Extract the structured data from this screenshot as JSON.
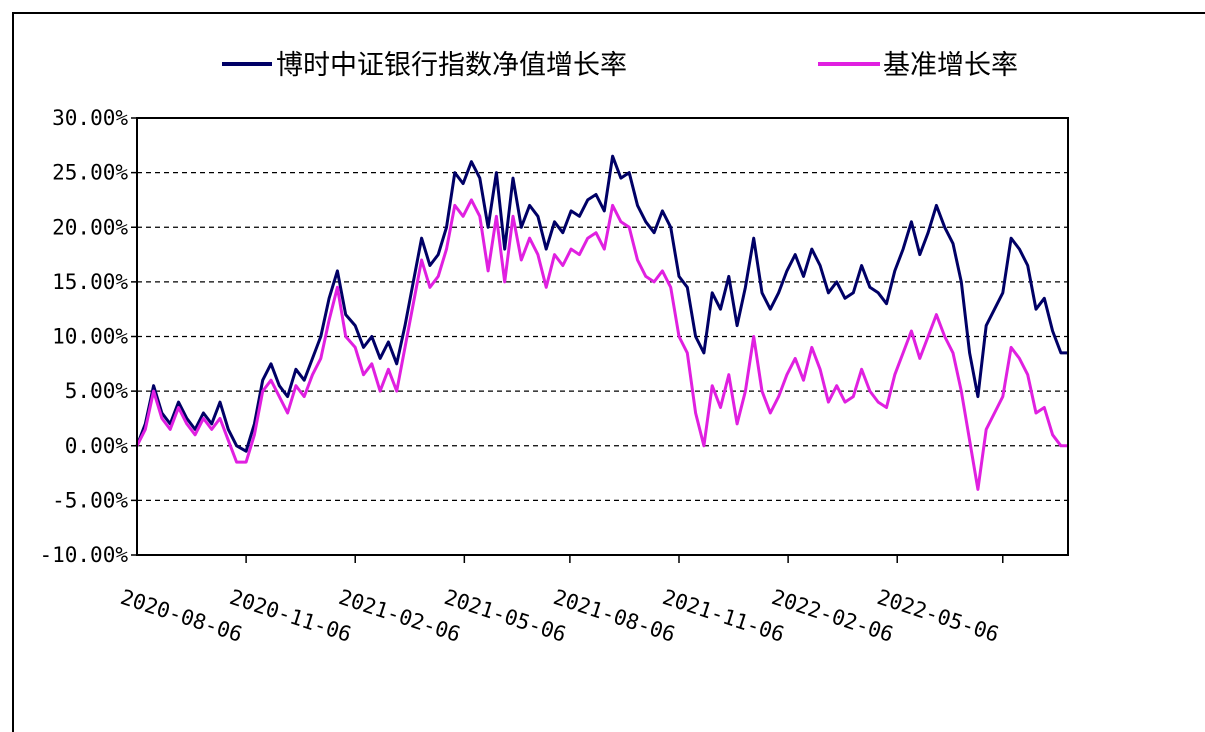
{
  "chart_data": {
    "type": "line",
    "title": "",
    "xlabel": "",
    "ylabel": "",
    "ylim": [
      -10,
      30
    ],
    "grid": "horizontal-dashed",
    "legend_position": "top",
    "y_ticks": [
      "30.00%",
      "25.00%",
      "20.00%",
      "15.00%",
      "10.00%",
      "5.00%",
      "0.00%",
      "-5.00%",
      "-10.00%"
    ],
    "y_tick_values": [
      30,
      25,
      20,
      15,
      10,
      5,
      0,
      -5,
      -10
    ],
    "x_ticks": [
      "2020-08-06",
      "2020-11-06",
      "2021-02-06",
      "2021-05-06",
      "2021-08-06",
      "2021-11-06",
      "2022-02-06",
      "2022-05-06"
    ],
    "x_start": "2020-05-06",
    "x_end": "2022-06-30",
    "series": [
      {
        "name": "博时中证银行指数净值增长率",
        "color": "#000066",
        "points": [
          [
            "2020-05-06",
            0.0
          ],
          [
            "2020-05-13",
            2.0
          ],
          [
            "2020-05-20",
            5.5
          ],
          [
            "2020-05-27",
            3.0
          ],
          [
            "2020-06-03",
            2.0
          ],
          [
            "2020-06-10",
            4.0
          ],
          [
            "2020-06-17",
            2.5
          ],
          [
            "2020-06-24",
            1.5
          ],
          [
            "2020-07-01",
            3.0
          ],
          [
            "2020-07-08",
            2.0
          ],
          [
            "2020-07-15",
            4.0
          ],
          [
            "2020-07-22",
            1.5
          ],
          [
            "2020-07-29",
            0.0
          ],
          [
            "2020-08-06",
            -0.5
          ],
          [
            "2020-08-13",
            2.0
          ],
          [
            "2020-08-20",
            6.0
          ],
          [
            "2020-08-27",
            7.5
          ],
          [
            "2020-09-03",
            5.5
          ],
          [
            "2020-09-10",
            4.5
          ],
          [
            "2020-09-17",
            7.0
          ],
          [
            "2020-09-24",
            6.0
          ],
          [
            "2020-10-01",
            8.0
          ],
          [
            "2020-10-08",
            10.0
          ],
          [
            "2020-10-15",
            13.5
          ],
          [
            "2020-10-22",
            16.0
          ],
          [
            "2020-10-29",
            12.0
          ],
          [
            "2020-11-06",
            11.0
          ],
          [
            "2020-11-13",
            9.0
          ],
          [
            "2020-11-20",
            10.0
          ],
          [
            "2020-11-27",
            8.0
          ],
          [
            "2020-12-04",
            9.5
          ],
          [
            "2020-12-11",
            7.5
          ],
          [
            "2020-12-18",
            11.0
          ],
          [
            "2020-12-25",
            15.0
          ],
          [
            "2021-01-01",
            19.0
          ],
          [
            "2021-01-08",
            16.5
          ],
          [
            "2021-01-15",
            17.5
          ],
          [
            "2021-01-22",
            20.0
          ],
          [
            "2021-01-29",
            25.0
          ],
          [
            "2021-02-05",
            24.0
          ],
          [
            "2021-02-12",
            26.0
          ],
          [
            "2021-02-19",
            24.5
          ],
          [
            "2021-02-26",
            20.0
          ],
          [
            "2021-03-05",
            25.0
          ],
          [
            "2021-03-12",
            18.0
          ],
          [
            "2021-03-19",
            24.5
          ],
          [
            "2021-03-26",
            20.0
          ],
          [
            "2021-04-02",
            22.0
          ],
          [
            "2021-04-09",
            21.0
          ],
          [
            "2021-04-16",
            18.0
          ],
          [
            "2021-04-23",
            20.5
          ],
          [
            "2021-04-30",
            19.5
          ],
          [
            "2021-05-07",
            21.5
          ],
          [
            "2021-05-14",
            21.0
          ],
          [
            "2021-05-21",
            22.5
          ],
          [
            "2021-05-28",
            23.0
          ],
          [
            "2021-06-04",
            21.5
          ],
          [
            "2021-06-11",
            26.5
          ],
          [
            "2021-06-18",
            24.5
          ],
          [
            "2021-06-25",
            25.0
          ],
          [
            "2021-07-02",
            22.0
          ],
          [
            "2021-07-09",
            20.5
          ],
          [
            "2021-07-16",
            19.5
          ],
          [
            "2021-07-23",
            21.5
          ],
          [
            "2021-07-30",
            20.0
          ],
          [
            "2021-08-06",
            15.5
          ],
          [
            "2021-08-13",
            14.5
          ],
          [
            "2021-08-20",
            10.0
          ],
          [
            "2021-08-27",
            8.5
          ],
          [
            "2021-09-03",
            14.0
          ],
          [
            "2021-09-10",
            12.5
          ],
          [
            "2021-09-17",
            15.5
          ],
          [
            "2021-09-24",
            11.0
          ],
          [
            "2021-10-01",
            14.5
          ],
          [
            "2021-10-08",
            19.0
          ],
          [
            "2021-10-15",
            14.0
          ],
          [
            "2021-10-22",
            12.5
          ],
          [
            "2021-10-29",
            14.0
          ],
          [
            "2021-11-05",
            16.0
          ],
          [
            "2021-11-12",
            17.5
          ],
          [
            "2021-11-19",
            15.5
          ],
          [
            "2021-11-26",
            18.0
          ],
          [
            "2021-12-03",
            16.5
          ],
          [
            "2021-12-10",
            14.0
          ],
          [
            "2021-12-17",
            15.0
          ],
          [
            "2021-12-24",
            13.5
          ],
          [
            "2021-12-31",
            14.0
          ],
          [
            "2022-01-07",
            16.5
          ],
          [
            "2022-01-14",
            14.5
          ],
          [
            "2022-01-21",
            14.0
          ],
          [
            "2022-01-28",
            13.0
          ],
          [
            "2022-02-04",
            16.0
          ],
          [
            "2022-02-11",
            18.0
          ],
          [
            "2022-02-18",
            20.5
          ],
          [
            "2022-02-25",
            17.5
          ],
          [
            "2022-03-04",
            19.5
          ],
          [
            "2022-03-11",
            22.0
          ],
          [
            "2022-03-18",
            20.0
          ],
          [
            "2022-03-25",
            18.5
          ],
          [
            "2022-04-01",
            15.0
          ],
          [
            "2022-04-08",
            8.5
          ],
          [
            "2022-04-15",
            4.5
          ],
          [
            "2022-04-22",
            11.0
          ],
          [
            "2022-04-29",
            12.5
          ],
          [
            "2022-05-06",
            14.0
          ],
          [
            "2022-05-13",
            19.0
          ],
          [
            "2022-05-20",
            18.0
          ],
          [
            "2022-05-27",
            16.5
          ],
          [
            "2022-06-03",
            12.5
          ],
          [
            "2022-06-10",
            13.5
          ],
          [
            "2022-06-17",
            10.5
          ],
          [
            "2022-06-24",
            8.5
          ],
          [
            "2022-06-30",
            8.5
          ]
        ]
      },
      {
        "name": "基准增长率",
        "color": "#e020e0",
        "points": [
          [
            "2020-05-06",
            0.0
          ],
          [
            "2020-05-13",
            1.5
          ],
          [
            "2020-05-20",
            5.0
          ],
          [
            "2020-05-27",
            2.5
          ],
          [
            "2020-06-03",
            1.5
          ],
          [
            "2020-06-10",
            3.5
          ],
          [
            "2020-06-17",
            2.0
          ],
          [
            "2020-06-24",
            1.0
          ],
          [
            "2020-07-01",
            2.5
          ],
          [
            "2020-07-08",
            1.5
          ],
          [
            "2020-07-15",
            2.5
          ],
          [
            "2020-07-22",
            0.5
          ],
          [
            "2020-07-29",
            -1.5
          ],
          [
            "2020-08-06",
            -1.5
          ],
          [
            "2020-08-13",
            1.0
          ],
          [
            "2020-08-20",
            5.0
          ],
          [
            "2020-08-27",
            6.0
          ],
          [
            "2020-09-03",
            4.5
          ],
          [
            "2020-09-10",
            3.0
          ],
          [
            "2020-09-17",
            5.5
          ],
          [
            "2020-09-24",
            4.5
          ],
          [
            "2020-10-01",
            6.5
          ],
          [
            "2020-10-08",
            8.0
          ],
          [
            "2020-10-15",
            11.5
          ],
          [
            "2020-10-22",
            14.5
          ],
          [
            "2020-10-29",
            10.0
          ],
          [
            "2020-11-06",
            9.0
          ],
          [
            "2020-11-13",
            6.5
          ],
          [
            "2020-11-20",
            7.5
          ],
          [
            "2020-11-27",
            5.0
          ],
          [
            "2020-12-04",
            7.0
          ],
          [
            "2020-12-11",
            5.0
          ],
          [
            "2020-12-18",
            9.0
          ],
          [
            "2020-12-25",
            13.0
          ],
          [
            "2021-01-01",
            17.0
          ],
          [
            "2021-01-08",
            14.5
          ],
          [
            "2021-01-15",
            15.5
          ],
          [
            "2021-01-22",
            18.0
          ],
          [
            "2021-01-29",
            22.0
          ],
          [
            "2021-02-05",
            21.0
          ],
          [
            "2021-02-12",
            22.5
          ],
          [
            "2021-02-19",
            21.0
          ],
          [
            "2021-02-26",
            16.0
          ],
          [
            "2021-03-05",
            21.0
          ],
          [
            "2021-03-12",
            15.0
          ],
          [
            "2021-03-19",
            21.0
          ],
          [
            "2021-03-26",
            17.0
          ],
          [
            "2021-04-02",
            19.0
          ],
          [
            "2021-04-09",
            17.5
          ],
          [
            "2021-04-16",
            14.5
          ],
          [
            "2021-04-23",
            17.5
          ],
          [
            "2021-04-30",
            16.5
          ],
          [
            "2021-05-07",
            18.0
          ],
          [
            "2021-05-14",
            17.5
          ],
          [
            "2021-05-21",
            19.0
          ],
          [
            "2021-05-28",
            19.5
          ],
          [
            "2021-06-04",
            18.0
          ],
          [
            "2021-06-11",
            22.0
          ],
          [
            "2021-06-18",
            20.5
          ],
          [
            "2021-06-25",
            20.0
          ],
          [
            "2021-07-02",
            17.0
          ],
          [
            "2021-07-09",
            15.5
          ],
          [
            "2021-07-16",
            15.0
          ],
          [
            "2021-07-23",
            16.0
          ],
          [
            "2021-07-30",
            14.5
          ],
          [
            "2021-08-06",
            10.0
          ],
          [
            "2021-08-13",
            8.5
          ],
          [
            "2021-08-20",
            3.0
          ],
          [
            "2021-08-27",
            0.0
          ],
          [
            "2021-09-03",
            5.5
          ],
          [
            "2021-09-10",
            3.5
          ],
          [
            "2021-09-17",
            6.5
          ],
          [
            "2021-09-24",
            2.0
          ],
          [
            "2021-10-01",
            5.0
          ],
          [
            "2021-10-08",
            10.0
          ],
          [
            "2021-10-15",
            5.0
          ],
          [
            "2021-10-22",
            3.0
          ],
          [
            "2021-10-29",
            4.5
          ],
          [
            "2021-11-05",
            6.5
          ],
          [
            "2021-11-12",
            8.0
          ],
          [
            "2021-11-19",
            6.0
          ],
          [
            "2021-11-26",
            9.0
          ],
          [
            "2021-12-03",
            7.0
          ],
          [
            "2021-12-10",
            4.0
          ],
          [
            "2021-12-17",
            5.5
          ],
          [
            "2021-12-24",
            4.0
          ],
          [
            "2021-12-31",
            4.5
          ],
          [
            "2022-01-07",
            7.0
          ],
          [
            "2022-01-14",
            5.0
          ],
          [
            "2022-01-21",
            4.0
          ],
          [
            "2022-01-28",
            3.5
          ],
          [
            "2022-02-04",
            6.5
          ],
          [
            "2022-02-11",
            8.5
          ],
          [
            "2022-02-18",
            10.5
          ],
          [
            "2022-02-25",
            8.0
          ],
          [
            "2022-03-04",
            10.0
          ],
          [
            "2022-03-11",
            12.0
          ],
          [
            "2022-03-18",
            10.0
          ],
          [
            "2022-03-25",
            8.5
          ],
          [
            "2022-04-01",
            5.0
          ],
          [
            "2022-04-08",
            0.5
          ],
          [
            "2022-04-15",
            -4.0
          ],
          [
            "2022-04-22",
            1.5
          ],
          [
            "2022-04-29",
            3.0
          ],
          [
            "2022-05-06",
            4.5
          ],
          [
            "2022-05-13",
            9.0
          ],
          [
            "2022-05-20",
            8.0
          ],
          [
            "2022-05-27",
            6.5
          ],
          [
            "2022-06-03",
            3.0
          ],
          [
            "2022-06-10",
            3.5
          ],
          [
            "2022-06-17",
            1.0
          ],
          [
            "2022-06-24",
            0.0
          ],
          [
            "2022-06-30",
            0.0
          ]
        ]
      }
    ]
  }
}
